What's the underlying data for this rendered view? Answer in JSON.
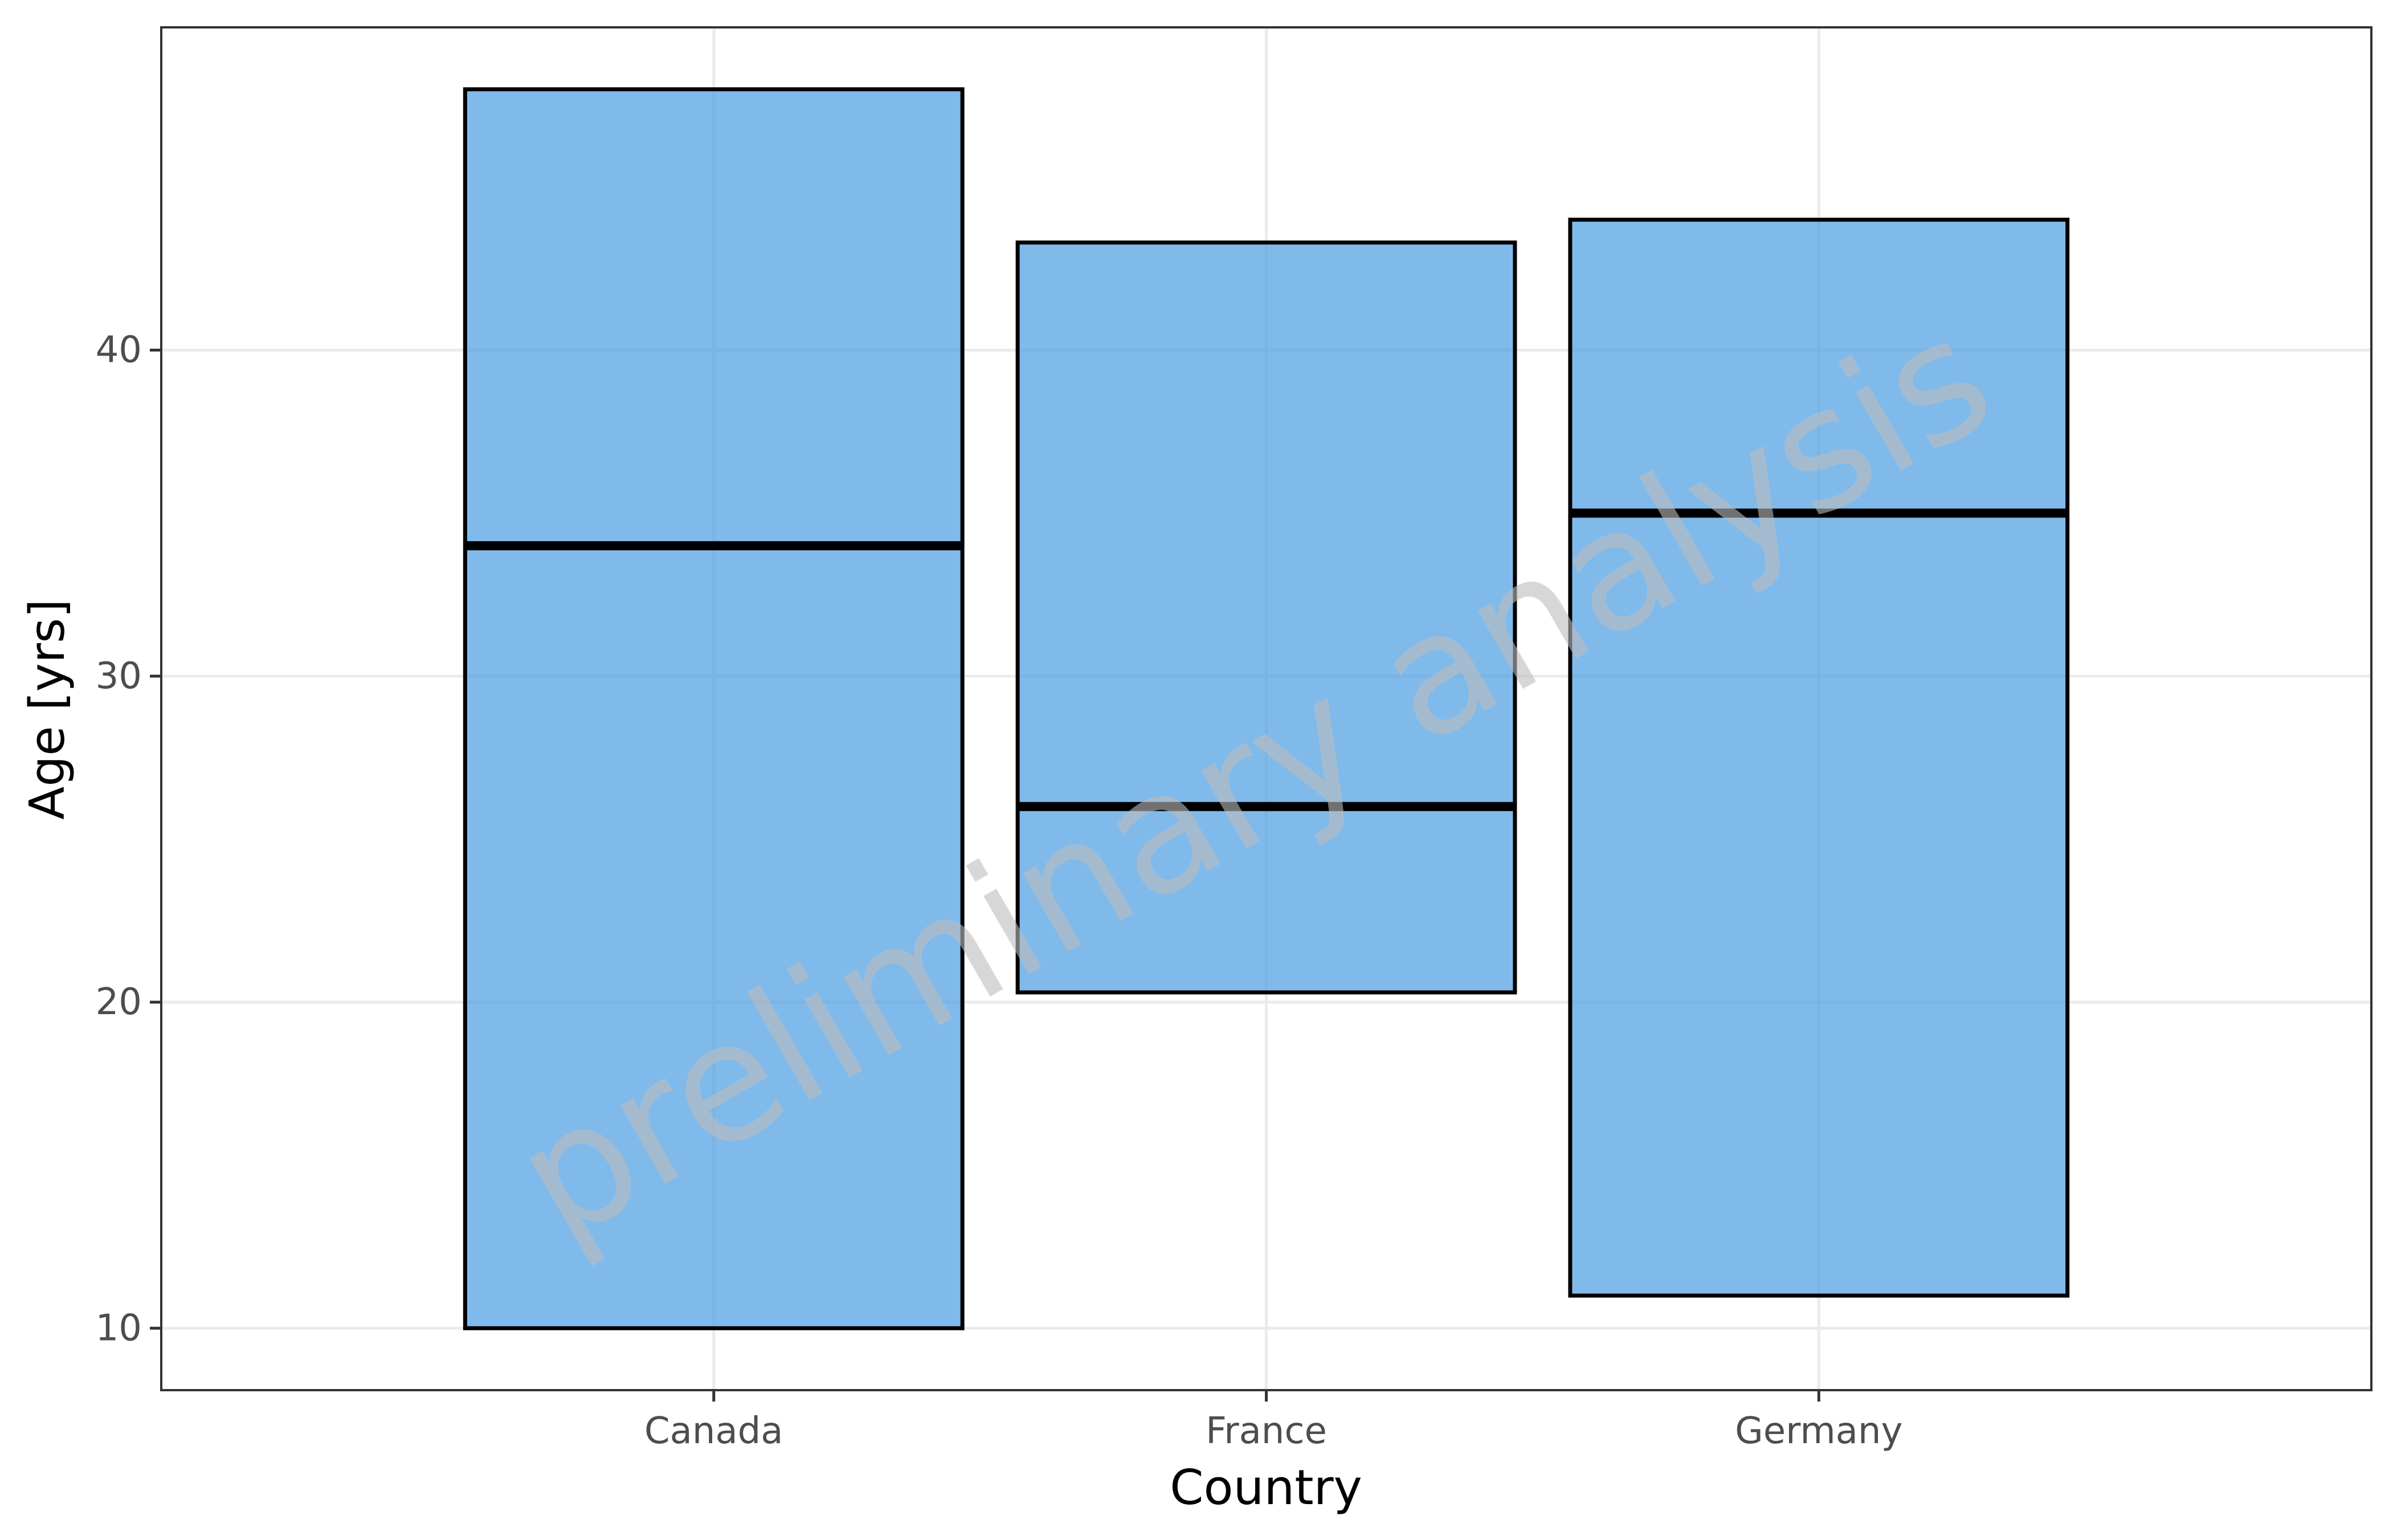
{
  "chart_data": {
    "type": "crossbar",
    "categories": [
      "Canada",
      "France",
      "Germany"
    ],
    "series": [
      {
        "values": [
          {
            "ymin": 10,
            "median": 34,
            "ymax": 48
          },
          {
            "ymin": 20.3,
            "median": 26,
            "ymax": 43.3
          },
          {
            "ymin": 11,
            "median": 35,
            "ymax": 44
          }
        ]
      }
    ],
    "xlabel": "Country",
    "ylabel": "Age [yrs]",
    "ylim": [
      8.1,
      49.9
    ],
    "yticks": [
      10,
      20,
      30,
      40
    ],
    "grid": true,
    "watermark": "preliminary analysis",
    "colors": {
      "box_fill": "#4a9de2",
      "box_fill_opacity": 0.7,
      "box_stroke": "#000000",
      "grid": "#ebebeb",
      "panel_border": "#333333"
    }
  }
}
